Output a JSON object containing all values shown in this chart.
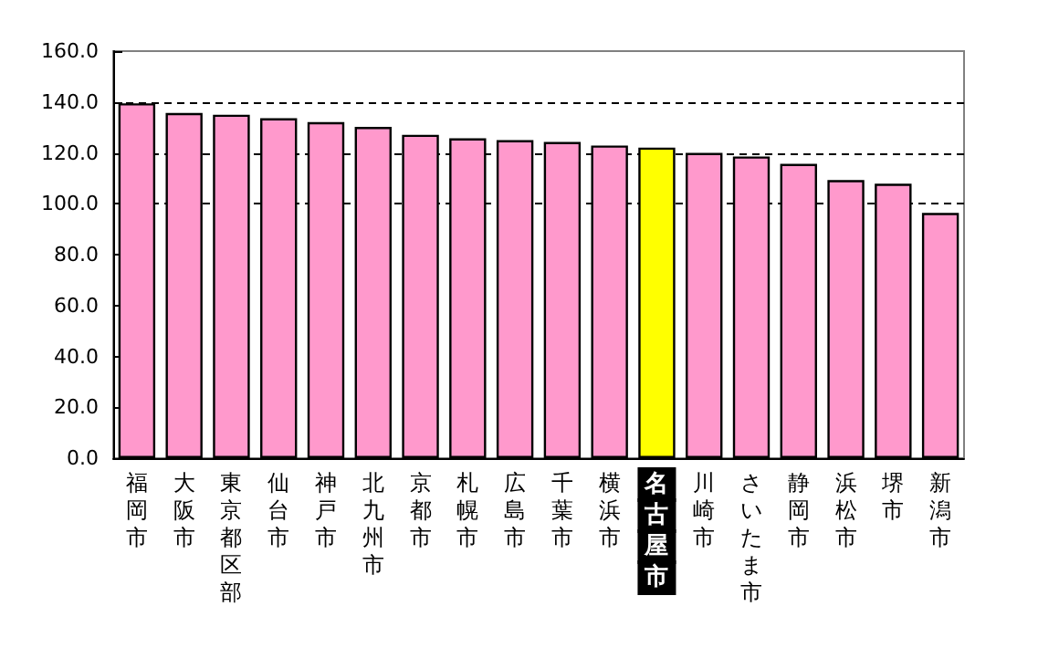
{
  "chart_data": {
    "type": "bar",
    "categories": [
      "福岡市",
      "大阪市",
      "東京都区部",
      "仙台市",
      "神戸市",
      "北九州市",
      "京都市",
      "札幌市",
      "広島市",
      "千葉市",
      "横浜市",
      "名古屋市",
      "川崎市",
      "さいたま市",
      "静岡市",
      "浜松市",
      "堺市",
      "新潟市"
    ],
    "values": [
      139.5,
      135.7,
      135.0,
      133.6,
      132.1,
      130.2,
      127.1,
      125.7,
      125.0,
      124.3,
      122.9,
      122.1,
      120.0,
      118.6,
      115.7,
      109.3,
      107.9,
      96.4
    ],
    "colors": [
      "#ff99cc",
      "#ff99cc",
      "#ff99cc",
      "#ff99cc",
      "#ff99cc",
      "#ff99cc",
      "#ff99cc",
      "#ff99cc",
      "#ff99cc",
      "#ff99cc",
      "#ff99cc",
      "#ffff00",
      "#ff99cc",
      "#ff99cc",
      "#ff99cc",
      "#ff99cc",
      "#ff99cc",
      "#ff99cc"
    ],
    "ylim": [
      0,
      160
    ],
    "yticks": [
      {
        "value": 0,
        "label": "0.0"
      },
      {
        "value": 20,
        "label": "20.0"
      },
      {
        "value": 40,
        "label": "40.0"
      },
      {
        "value": 60,
        "label": "60.0"
      },
      {
        "value": 80,
        "label": "80.0"
      },
      {
        "value": 100,
        "label": "100.0"
      },
      {
        "value": 120,
        "label": "120.0"
      },
      {
        "value": 140,
        "label": "140.0"
      },
      {
        "value": 160,
        "label": "160.0"
      }
    ],
    "ref_lines": [
      {
        "axis": "y",
        "value": 100,
        "line_style": "dashed",
        "color": "#000000"
      },
      {
        "axis": "y",
        "value": 120,
        "line_style": "dashed",
        "color": "#000000"
      },
      {
        "axis": "y",
        "value": 140,
        "line_style": "dashed",
        "color": "#000000"
      }
    ]
  }
}
